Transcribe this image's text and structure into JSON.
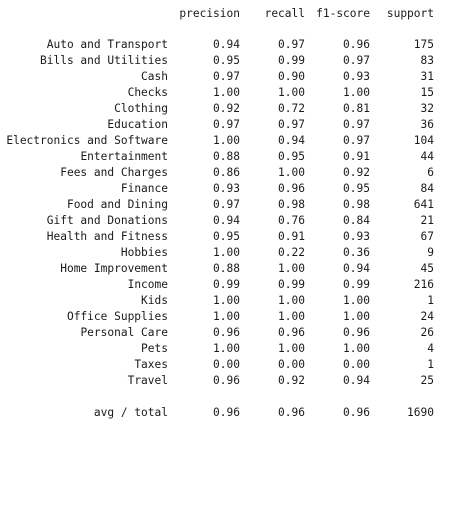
{
  "header": {
    "precision": "precision",
    "recall": "recall",
    "f1": "f1-score",
    "support": "support"
  },
  "rows": [
    {
      "label": "Auto and Transport",
      "precision": "0.94",
      "recall": "0.97",
      "f1": "0.96",
      "support": "175"
    },
    {
      "label": "Bills and Utilities",
      "precision": "0.95",
      "recall": "0.99",
      "f1": "0.97",
      "support": "83"
    },
    {
      "label": "Cash",
      "precision": "0.97",
      "recall": "0.90",
      "f1": "0.93",
      "support": "31"
    },
    {
      "label": "Checks",
      "precision": "1.00",
      "recall": "1.00",
      "f1": "1.00",
      "support": "15"
    },
    {
      "label": "Clothing",
      "precision": "0.92",
      "recall": "0.72",
      "f1": "0.81",
      "support": "32"
    },
    {
      "label": "Education",
      "precision": "0.97",
      "recall": "0.97",
      "f1": "0.97",
      "support": "36"
    },
    {
      "label": "Electronics and Software",
      "precision": "1.00",
      "recall": "0.94",
      "f1": "0.97",
      "support": "104"
    },
    {
      "label": "Entertainment",
      "precision": "0.88",
      "recall": "0.95",
      "f1": "0.91",
      "support": "44"
    },
    {
      "label": "Fees and Charges",
      "precision": "0.86",
      "recall": "1.00",
      "f1": "0.92",
      "support": "6"
    },
    {
      "label": "Finance",
      "precision": "0.93",
      "recall": "0.96",
      "f1": "0.95",
      "support": "84"
    },
    {
      "label": "Food and Dining",
      "precision": "0.97",
      "recall": "0.98",
      "f1": "0.98",
      "support": "641"
    },
    {
      "label": "Gift and Donations",
      "precision": "0.94",
      "recall": "0.76",
      "f1": "0.84",
      "support": "21"
    },
    {
      "label": "Health and Fitness",
      "precision": "0.95",
      "recall": "0.91",
      "f1": "0.93",
      "support": "67"
    },
    {
      "label": "Hobbies",
      "precision": "1.00",
      "recall": "0.22",
      "f1": "0.36",
      "support": "9"
    },
    {
      "label": "Home Improvement",
      "precision": "0.88",
      "recall": "1.00",
      "f1": "0.94",
      "support": "45"
    },
    {
      "label": "Income",
      "precision": "0.99",
      "recall": "0.99",
      "f1": "0.99",
      "support": "216"
    },
    {
      "label": "Kids",
      "precision": "1.00",
      "recall": "1.00",
      "f1": "1.00",
      "support": "1"
    },
    {
      "label": "Office Supplies",
      "precision": "1.00",
      "recall": "1.00",
      "f1": "1.00",
      "support": "24"
    },
    {
      "label": "Personal Care",
      "precision": "0.96",
      "recall": "0.96",
      "f1": "0.96",
      "support": "26"
    },
    {
      "label": "Pets",
      "precision": "1.00",
      "recall": "1.00",
      "f1": "1.00",
      "support": "4"
    },
    {
      "label": "Taxes",
      "precision": "0.00",
      "recall": "0.00",
      "f1": "0.00",
      "support": "1"
    },
    {
      "label": "Travel",
      "precision": "0.96",
      "recall": "0.92",
      "f1": "0.94",
      "support": "25"
    }
  ],
  "summary": {
    "label": "avg / total",
    "precision": "0.96",
    "recall": "0.96",
    "f1": "0.96",
    "support": "1690"
  }
}
